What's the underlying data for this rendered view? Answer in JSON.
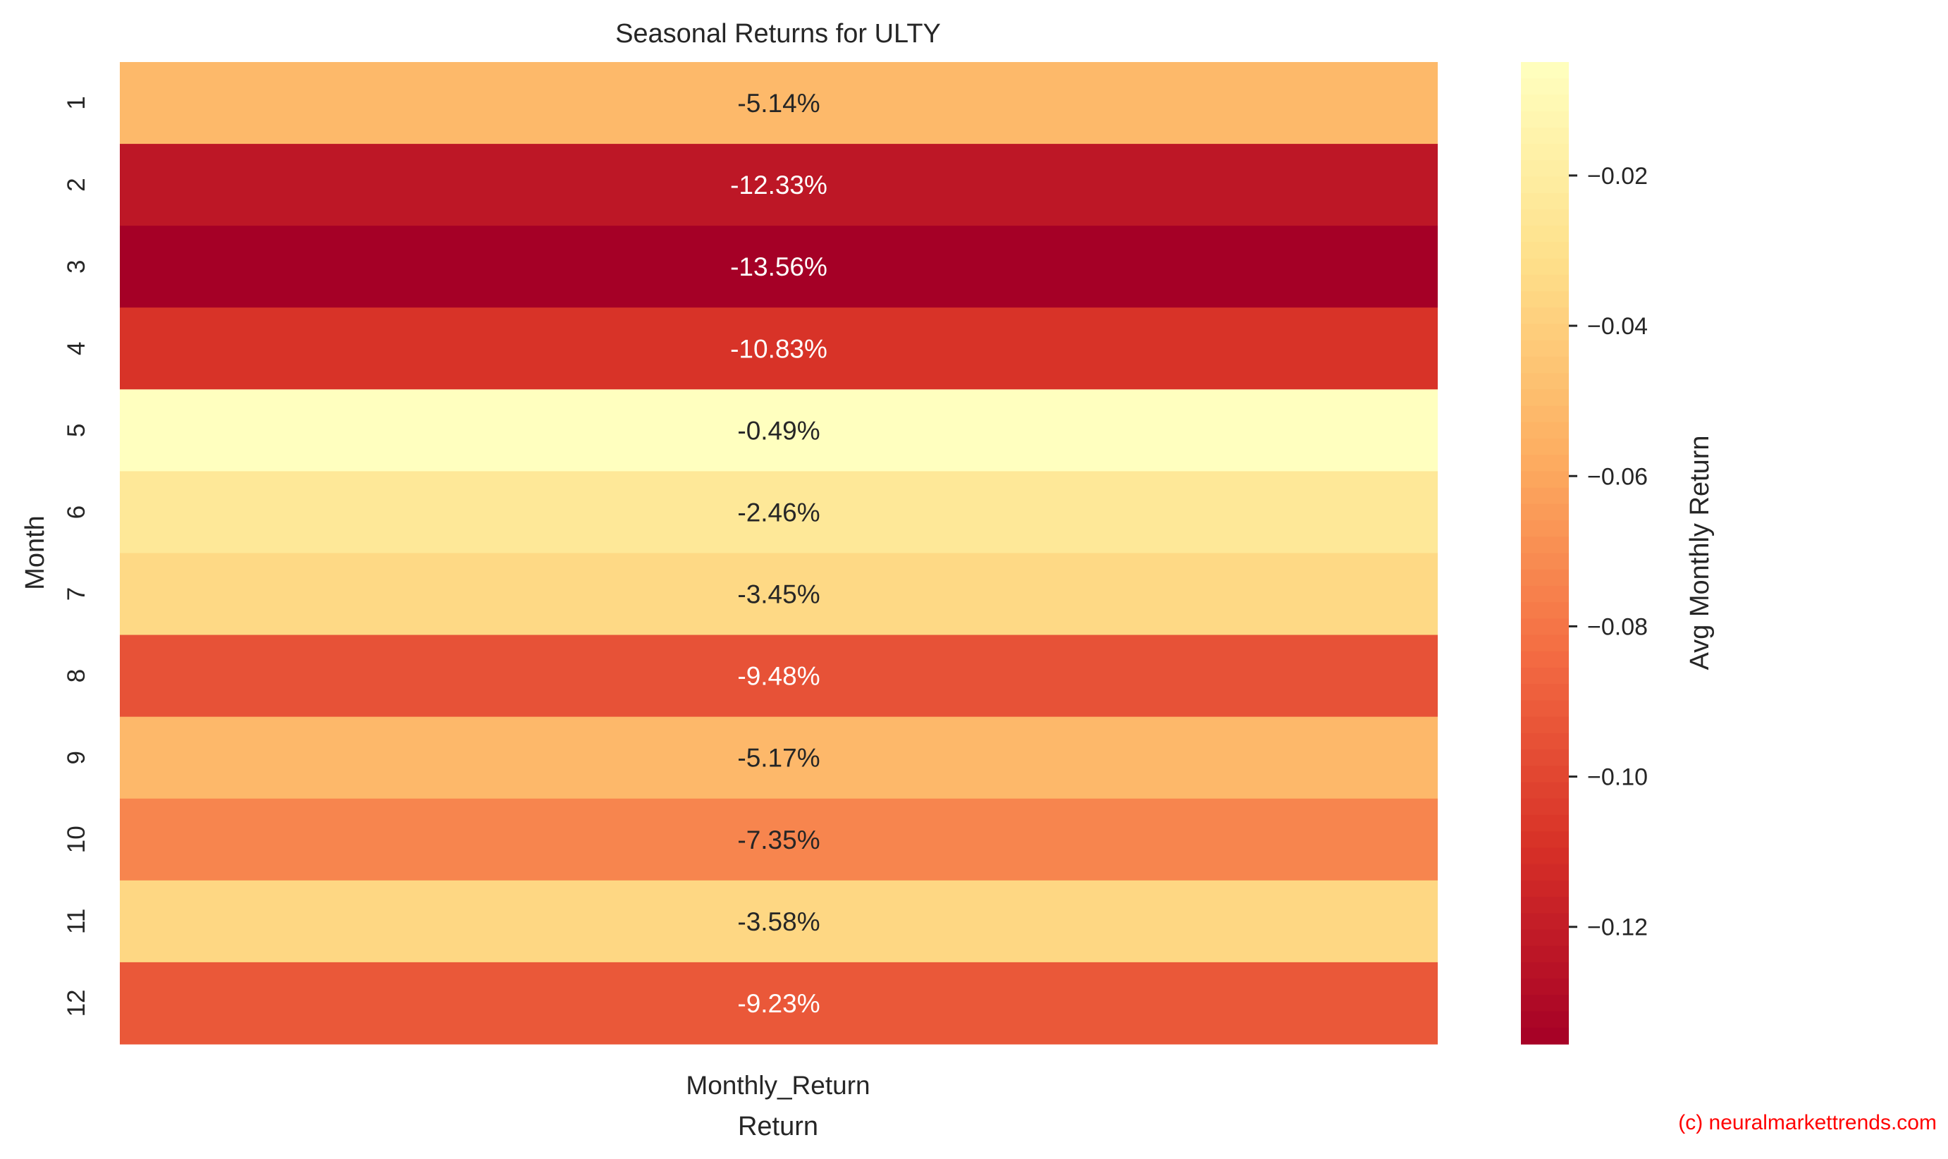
{
  "chart_data": {
    "type": "heatmap",
    "title": "Seasonal Returns for ULTY",
    "xlabel": "Return",
    "ylabel": "Month",
    "x_categories": [
      "Monthly_Return"
    ],
    "y_categories": [
      "1",
      "2",
      "3",
      "4",
      "5",
      "6",
      "7",
      "8",
      "9",
      "10",
      "11",
      "12"
    ],
    "values": [
      -0.0514,
      -0.1233,
      -0.1356,
      -0.1083,
      -0.0049,
      -0.0246,
      -0.0345,
      -0.0948,
      -0.0517,
      -0.0735,
      -0.0358,
      -0.0923
    ],
    "annotations": [
      "-5.14%",
      "-12.33%",
      "-13.56%",
      "-10.83%",
      "-0.49%",
      "-2.46%",
      "-3.45%",
      "-9.48%",
      "-5.17%",
      "-7.35%",
      "-3.58%",
      "-9.23%"
    ],
    "colorbar": {
      "label": "Avg Monthly Return",
      "range": [
        -0.1356,
        -0.0049
      ],
      "ticks": [
        -0.02,
        -0.04,
        -0.06,
        -0.08,
        -0.1,
        -0.12
      ],
      "tick_labels": [
        "−0.02",
        "−0.04",
        "−0.06",
        "−0.08",
        "−0.10",
        "−0.12"
      ],
      "colormap_stops": [
        "#a50026",
        "#d73027",
        "#f46d43",
        "#fdae61",
        "#fee08b",
        "#ffffbf"
      ]
    },
    "grid": false
  },
  "watermark": {
    "text": "(c) neuralmarkettrends.com",
    "color": "#ff0000"
  }
}
